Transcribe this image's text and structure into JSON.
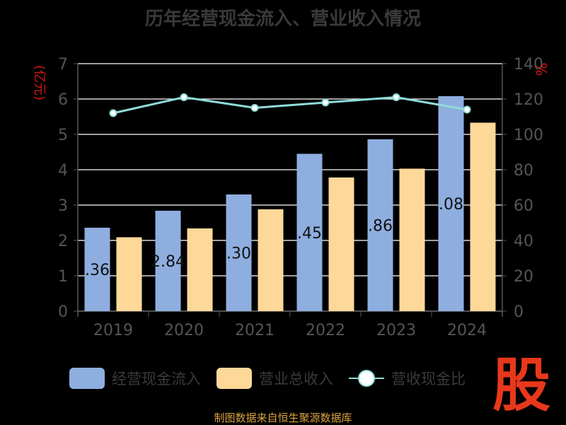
{
  "title": "历年经营现金流入、营业收入情况",
  "source": "制图数据来自恒生聚源数据库",
  "watermark_icon": "stock-gu-logo",
  "colors": {
    "cash_inflow": "#8eaee0",
    "revenue": "#fed898",
    "ratio": "#8fdcd8",
    "left_unit": "#d01818",
    "axis_text": "#555555",
    "grid": "#ffffff"
  },
  "chart_data": {
    "type": "bar",
    "categories": [
      "2019",
      "2020",
      "2021",
      "2022",
      "2023",
      "2024"
    ],
    "series": [
      {
        "name": "经营现金流入",
        "axis": "left",
        "values": [
          2.36,
          2.84,
          3.3,
          4.45,
          4.86,
          6.08
        ]
      },
      {
        "name": "营业总收入",
        "axis": "left",
        "values": [
          2.09,
          2.34,
          2.88,
          3.78,
          4.03,
          5.33
        ]
      },
      {
        "name": "营收现金比",
        "type": "line",
        "axis": "right",
        "values": [
          112,
          121,
          115,
          118,
          121,
          114
        ]
      }
    ],
    "data_labels": [
      ".36",
      "2.84",
      ".30",
      ".45",
      ".86",
      ".08"
    ],
    "ylabel": "(亿元)",
    "y2label": "%",
    "ylim": [
      0,
      7
    ],
    "y2lim": [
      0,
      140
    ],
    "yticks": [
      "0",
      "1",
      "2",
      "3",
      "4",
      "5",
      "6",
      "7"
    ],
    "y2ticks": [
      "0",
      "20",
      "40",
      "60",
      "80",
      "100",
      "120",
      "140"
    ],
    "grid": true,
    "legend": "bottom"
  }
}
